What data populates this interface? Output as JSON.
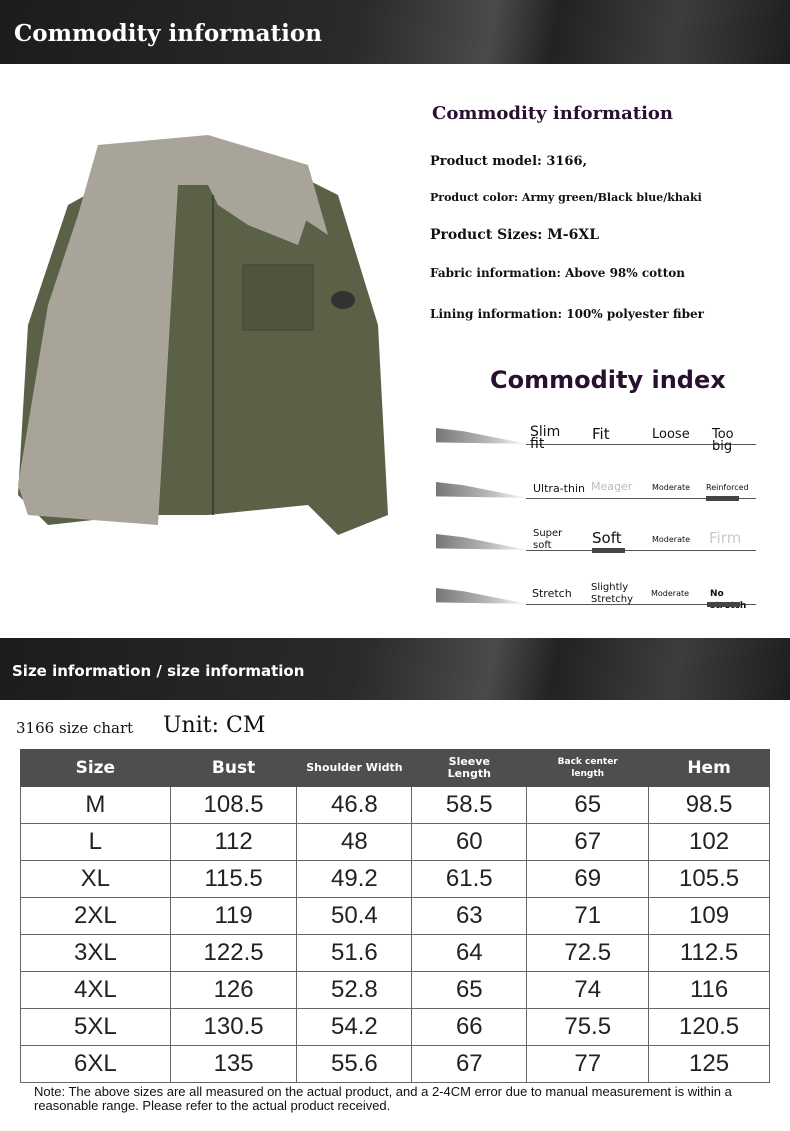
{
  "banner1": "Commodity information",
  "info": {
    "title": "Commodity information",
    "items": [
      "Product model: 3166,",
      "Product color: Army green/Black blue/khaki",
      "Product Sizes: M-6XL",
      "Fabric information: Above 98% cotton",
      "Lining information: 100% polyester fiber"
    ]
  },
  "index": {
    "title": "Commodity index",
    "rows": [
      {
        "labels": [
          "Slim fit",
          "Fit",
          "Loose",
          "Too big"
        ],
        "selected": null
      },
      {
        "labels": [
          "Ultra-thin",
          "Meager",
          "Moderate",
          "Reinforced"
        ],
        "selected": 3
      },
      {
        "labels": [
          "Super soft",
          "Soft",
          "Moderate",
          "Firm"
        ],
        "selected": 1
      },
      {
        "labels": [
          "Stretch",
          "Slightly Stretchy",
          "Moderate",
          "No stretch"
        ],
        "selected": 3
      }
    ]
  },
  "banner2": "Size information / size information",
  "size_chart": {
    "label": "3166 size chart",
    "unit": "Unit: CM",
    "headers": [
      "Size",
      "Bust",
      "Shoulder Width",
      "Sleeve Length",
      "Back center length",
      "Hem"
    ],
    "rows": [
      [
        "M",
        "108.5",
        "46.8",
        "58.5",
        "65",
        "98.5"
      ],
      [
        "L",
        "112",
        "48",
        "60",
        "67",
        "102"
      ],
      [
        "XL",
        "115.5",
        "49.2",
        "61.5",
        "69",
        "105.5"
      ],
      [
        "2XL",
        "119",
        "50.4",
        "63",
        "71",
        "109"
      ],
      [
        "3XL",
        "122.5",
        "51.6",
        "64",
        "72.5",
        "112.5"
      ],
      [
        "4XL",
        "126",
        "52.8",
        "65",
        "74",
        "116"
      ],
      [
        "5XL",
        "130.5",
        "54.2",
        "66",
        "75.5",
        "120.5"
      ],
      [
        "6XL",
        "135",
        "55.6",
        "67",
        "77",
        "125"
      ]
    ]
  },
  "note": "Note: The above sizes are all measured on the actual product, and a 2-4CM error due to manual measurement is within a reasonable range. Please refer to the actual product received.",
  "colors": {
    "header_bg": "#4e4e4e",
    "jacket": "#5b6146",
    "fleece": "#a8a49a"
  }
}
